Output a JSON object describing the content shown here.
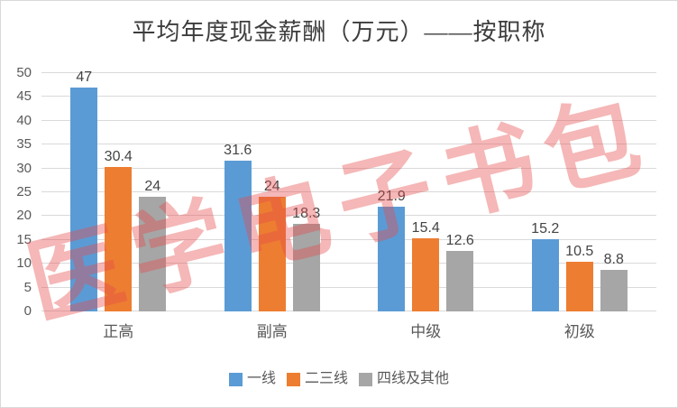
{
  "title": "平均年度现金薪酬（万元）——按职称",
  "watermark": "医学电子书包",
  "colors": {
    "series": [
      "#5B9BD5",
      "#ED7D31",
      "#A6A6A6"
    ],
    "gridline": "#D9D9D9",
    "title_text": "#3D3D3D",
    "axis_text": "#595959",
    "value_label_text": "#444444",
    "watermark_red": "#E74C4C",
    "frame_border": "#D9D9D9"
  },
  "chart_data": {
    "type": "bar",
    "title": "平均年度现金薪酬（万元）——按职称",
    "categories": [
      "正高",
      "副高",
      "中级",
      "初级"
    ],
    "series": [
      {
        "name": "一线",
        "values": [
          47,
          31.6,
          21.9,
          15.2
        ]
      },
      {
        "name": "二三线",
        "values": [
          30.4,
          24,
          15.4,
          10.5
        ]
      },
      {
        "name": "四线及其他",
        "values": [
          24,
          18.3,
          12.6,
          8.8
        ]
      }
    ],
    "ylim": [
      0,
      50
    ],
    "yticks": [
      0,
      5,
      10,
      15,
      20,
      25,
      30,
      35,
      40,
      45,
      50
    ],
    "xlabel": "",
    "ylabel": "",
    "grid": true,
    "legend_position": "bottom",
    "data_labels": true
  }
}
